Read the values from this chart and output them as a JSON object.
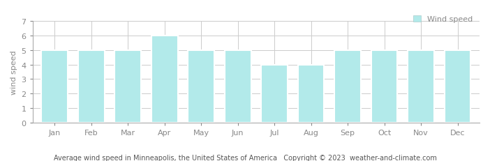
{
  "months": [
    "Jan",
    "Feb",
    "Mar",
    "Apr",
    "May",
    "Jun",
    "Jul",
    "Aug",
    "Sep",
    "Oct",
    "Nov",
    "Dec"
  ],
  "values": [
    5,
    5,
    5,
    6,
    5,
    5,
    4,
    4,
    5,
    5,
    5,
    5
  ],
  "bar_color": "#b2eaea",
  "bar_edge_color": "#ffffff",
  "ylim": [
    0,
    7
  ],
  "yticks": [
    0,
    1,
    2,
    3,
    4,
    5,
    6,
    7
  ],
  "ylabel": "wind speed",
  "legend_label": "Wind speed",
  "legend_color": "#b2eaea",
  "title": "Average wind speed in Minneapolis, the United States of America",
  "copyright": "Copyright © 2023  weather-and-climate.com",
  "background_color": "#ffffff",
  "plot_background_color": "#ffffff",
  "grid_color": "#cccccc",
  "tick_color": "#888888",
  "spine_color": "#aaaaaa",
  "tick_fontsize": 8,
  "axis_fontsize": 8,
  "bar_width": 0.72
}
